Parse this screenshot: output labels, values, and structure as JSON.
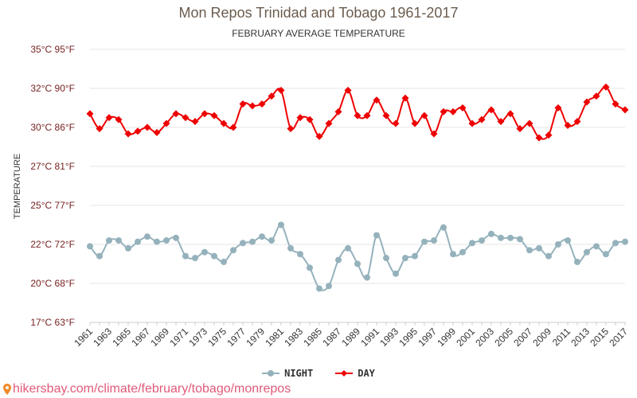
{
  "colors": {
    "night": "#95b2bc",
    "day": "#ee0000",
    "axis_text": "#772222",
    "footer": "#e05a7a",
    "grid": "#e6e6e6"
  },
  "icons": {
    "footer_icon": "map-pin-icon"
  },
  "footer": {
    "text": "hikersbay.com/climate/february/tobago/monrepos"
  },
  "chart_data": {
    "type": "line",
    "title": "Mon Repos Trinidad and Tobago 1961-2017",
    "subtitle": "FEBRUARY AVERAGE TEMPERATURE",
    "ylabel": "TEMPERATURE",
    "xlabel": "",
    "ylim": [
      17,
      35
    ],
    "y_ticks": [
      {
        "value": 35,
        "label": "35°C 95°F"
      },
      {
        "value": 32,
        "label": "32°C 90°F"
      },
      {
        "value": 30,
        "label": "30°C 86°F"
      },
      {
        "value": 27,
        "label": "27°C 81°F"
      },
      {
        "value": 25,
        "label": "25°C 77°F"
      },
      {
        "value": 22,
        "label": "22°C 72°F"
      },
      {
        "value": 20,
        "label": "20°C 68°F"
      },
      {
        "value": 17,
        "label": "17°C 63°F"
      }
    ],
    "x_tick_labels": [
      "1961",
      "1963",
      "1965",
      "1967",
      "1969",
      "1971",
      "1973",
      "1975",
      "1977",
      "1979",
      "1981",
      "1983",
      "1985",
      "1987",
      "1989",
      "1991",
      "1993",
      "1995",
      "1997",
      "1999",
      "2001",
      "2003",
      "2005",
      "2007",
      "2009",
      "2011",
      "2013",
      "2015",
      "2017"
    ],
    "x": [
      1961,
      1962,
      1963,
      1964,
      1965,
      1966,
      1967,
      1968,
      1969,
      1970,
      1971,
      1972,
      1973,
      1974,
      1975,
      1976,
      1977,
      1978,
      1979,
      1980,
      1981,
      1982,
      1983,
      1984,
      1985,
      1986,
      1987,
      1988,
      1989,
      1990,
      1991,
      1992,
      1993,
      1994,
      1995,
      1996,
      1997,
      1998,
      1999,
      2000,
      2001,
      2002,
      2003,
      2004,
      2005,
      2006,
      2007,
      2008,
      2009,
      2010,
      2011,
      2012,
      2013,
      2014,
      2015,
      2016,
      2017
    ],
    "grid": true,
    "legend_position": "bottom-center",
    "series": [
      {
        "name": "NIGHT",
        "values": [
          21.9,
          21.4,
          22.3,
          22.3,
          21.8,
          22.2,
          22.6,
          22.2,
          22.3,
          22.5,
          21.4,
          21.3,
          21.6,
          21.4,
          21.1,
          21.7,
          22.1,
          22.2,
          22.6,
          22.3,
          23.5,
          21.8,
          21.5,
          20.8,
          19.6,
          19.8,
          21.2,
          21.8,
          21.0,
          20.3,
          22.7,
          21.3,
          20.5,
          21.3,
          21.4,
          22.2,
          22.3,
          23.3,
          21.5,
          21.6,
          22.1,
          22.3,
          22.8,
          22.5,
          22.5,
          22.4,
          21.7,
          21.8,
          21.4,
          22.0,
          22.3,
          21.1,
          21.6,
          21.9,
          21.5,
          22.1,
          22.2
        ]
      },
      {
        "name": "DAY",
        "values": [
          30.7,
          29.9,
          30.5,
          30.4,
          29.5,
          29.7,
          30.0,
          29.6,
          30.2,
          30.7,
          30.5,
          30.3,
          30.7,
          30.6,
          30.2,
          30.0,
          31.2,
          31.1,
          31.2,
          31.6,
          31.9,
          29.9,
          30.5,
          30.4,
          29.3,
          30.2,
          30.8,
          31.9,
          30.6,
          30.6,
          31.4,
          30.6,
          30.2,
          31.5,
          30.2,
          30.6,
          29.5,
          30.8,
          30.8,
          31.0,
          30.2,
          30.4,
          30.9,
          30.3,
          30.7,
          29.9,
          30.2,
          29.2,
          29.4,
          31.0,
          30.1,
          30.3,
          31.3,
          31.6,
          32.1,
          31.2,
          30.9
        ]
      }
    ]
  }
}
